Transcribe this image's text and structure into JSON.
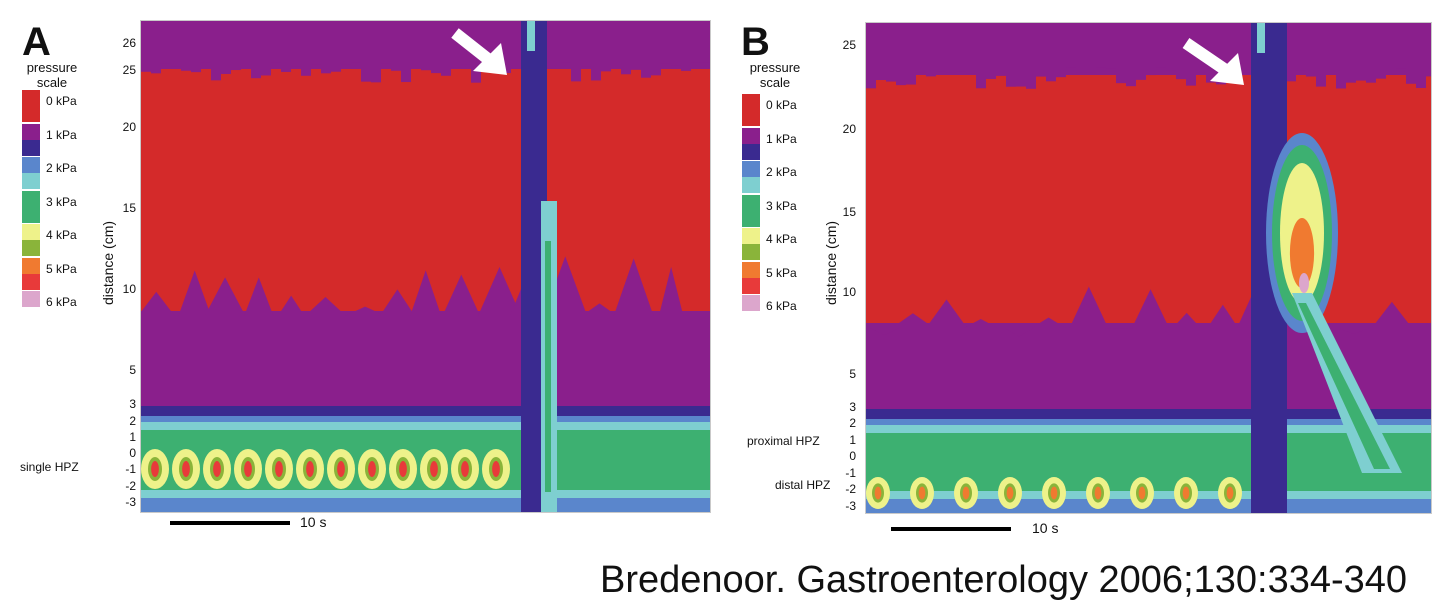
{
  "citation": "Bredenoor. Gastroenterology 2006;130:334-340",
  "colors": {
    "0": "#d42a2a",
    "1": "#8a1f8c",
    "1b": "#3a2a90",
    "2": "#5a86cc",
    "2b": "#7ecfd0",
    "3": "#3db071",
    "4": "#eef28a",
    "4b": "#8ab43a",
    "5": "#f07a30",
    "5b": "#e83a3a",
    "6": "#dca6cc"
  },
  "chart_data": [
    {
      "type": "heatmap",
      "panel_label": "A",
      "title": "",
      "scale_title": "pressure scale",
      "legend": [
        "0 kPa",
        "1 kPa",
        "2 kPa",
        "3 kPa",
        "4 kPa",
        "5 kPa",
        "6 kPa"
      ],
      "ylabel": "distance (cm)",
      "yticks": [
        "26",
        "25",
        "20",
        "15",
        "10",
        "5",
        "3",
        "2",
        "1",
        "0",
        "-1",
        "-2",
        "-3"
      ],
      "ylim": [
        -3,
        26
      ],
      "zone_labels": [
        "single HPZ"
      ],
      "scalebar_label": "10 s",
      "features": {
        "swallow_arrow": true,
        "hpz_band_cm": [
          -3,
          2
        ],
        "peak_pressure_kPa": 5
      }
    },
    {
      "type": "heatmap",
      "panel_label": "B",
      "title": "",
      "scale_title": "pressure scale",
      "legend": [
        "0 kPa",
        "1 kPa",
        "2 kPa",
        "3 kPa",
        "4 kPa",
        "5 kPa",
        "6 kPa"
      ],
      "ylabel": "distance (cm)",
      "yticks": [
        "25",
        "20",
        "15",
        "10",
        "5",
        "3",
        "2",
        "1",
        "0",
        "-1",
        "-2",
        "-3"
      ],
      "ylim": [
        -3,
        26
      ],
      "zone_labels": [
        "proximal HPZ",
        "distal HPZ"
      ],
      "scalebar_label": "10 s",
      "features": {
        "swallow_arrow": true,
        "hpz_band_cm": [
          -3,
          2
        ],
        "peak_pressure_kPa": 6
      }
    }
  ]
}
